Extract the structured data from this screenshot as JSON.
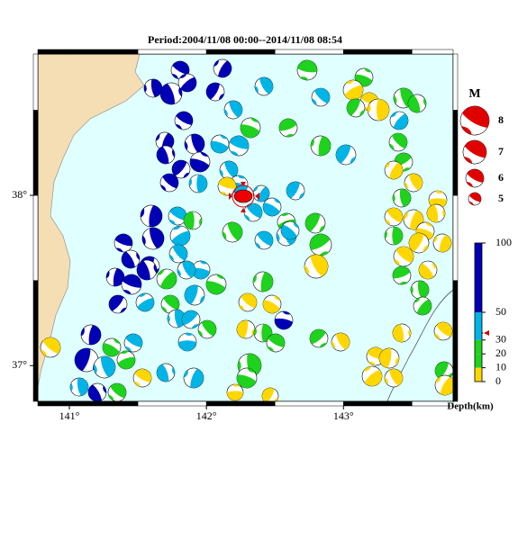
{
  "title": "Period:2004/11/08 00:00--2014/11/08 08:54",
  "map": {
    "xlim": [
      140.77,
      143.8
    ],
    "ylim": [
      36.79,
      38.83
    ],
    "xticks": [
      {
        "value": 141,
        "label": "141°"
      },
      {
        "value": 142,
        "label": "142°"
      },
      {
        "value": 143,
        "label": "143°"
      }
    ],
    "yticks": [
      {
        "value": 38,
        "label": "38°"
      },
      {
        "value": 37,
        "label": "37°"
      }
    ]
  },
  "magnitude_legend": {
    "title": "M",
    "values": [
      8,
      7,
      6,
      5
    ]
  },
  "depth_scale": {
    "label": "Depth(km)",
    "ylim": [
      0,
      100
    ],
    "ticks": [
      100,
      50,
      30,
      20,
      10,
      0
    ],
    "colors": [
      "#0000b4",
      "#00b4e6",
      "#1ed21e",
      "#1ed21e",
      "#ffd700"
    ]
  }
}
